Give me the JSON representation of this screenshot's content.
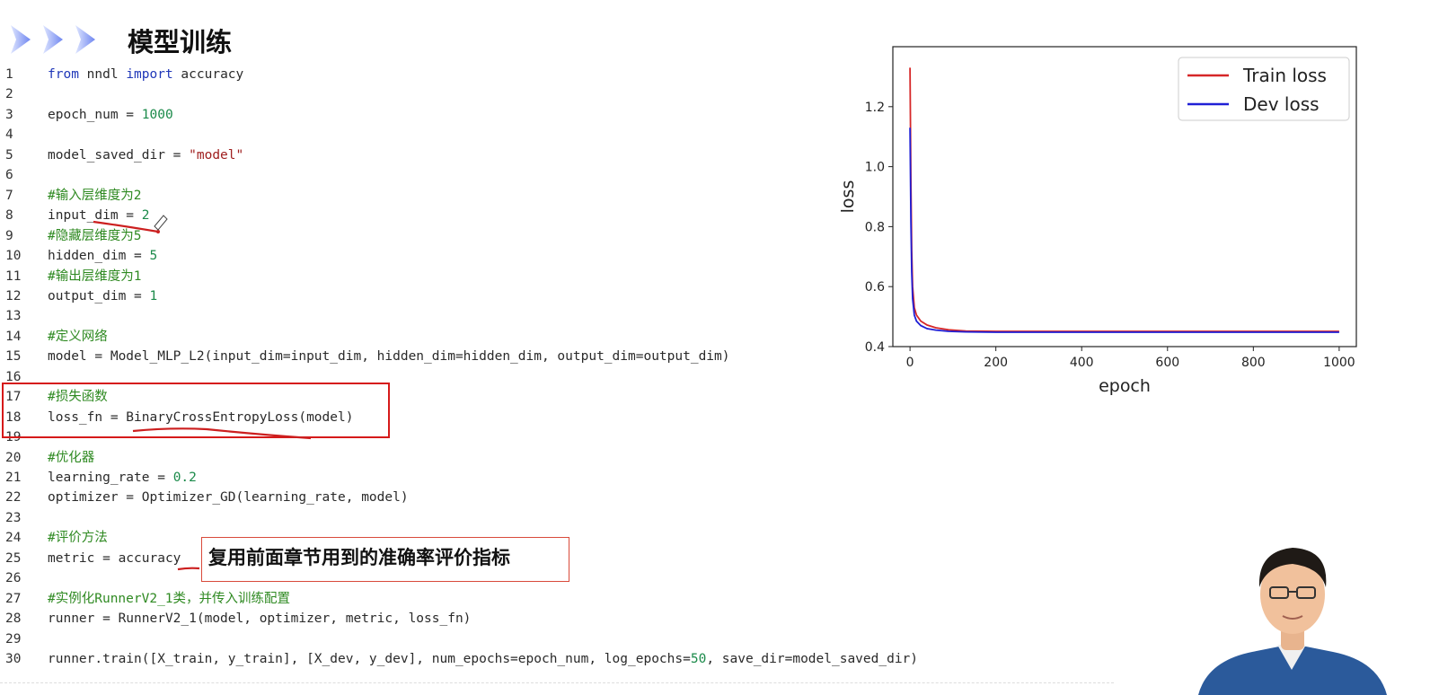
{
  "slide": {
    "title": "模型训练"
  },
  "code": {
    "lines": [
      {
        "n": "1",
        "parts": [
          [
            "kw",
            "from"
          ],
          [
            "",
            " nndl "
          ],
          [
            "kw",
            "import"
          ],
          [
            "",
            " accuracy"
          ]
        ]
      },
      {
        "n": "2",
        "parts": []
      },
      {
        "n": "3",
        "parts": [
          [
            "",
            "epoch_num = "
          ],
          [
            "num",
            "1000"
          ]
        ]
      },
      {
        "n": "4",
        "parts": []
      },
      {
        "n": "5",
        "parts": [
          [
            "",
            "model_saved_dir = "
          ],
          [
            "str",
            "\"model\""
          ]
        ]
      },
      {
        "n": "6",
        "parts": []
      },
      {
        "n": "7",
        "parts": [
          [
            "cmt",
            "#输入层维度为2"
          ]
        ]
      },
      {
        "n": "8",
        "parts": [
          [
            "",
            "input_dim = "
          ],
          [
            "num",
            "2"
          ]
        ]
      },
      {
        "n": "9",
        "parts": [
          [
            "cmt",
            "#隐藏层维度为5"
          ]
        ]
      },
      {
        "n": "10",
        "parts": [
          [
            "",
            "hidden_dim = "
          ],
          [
            "num",
            "5"
          ]
        ]
      },
      {
        "n": "11",
        "parts": [
          [
            "cmt",
            "#输出层维度为1"
          ]
        ]
      },
      {
        "n": "12",
        "parts": [
          [
            "",
            "output_dim = "
          ],
          [
            "num",
            "1"
          ]
        ]
      },
      {
        "n": "13",
        "parts": []
      },
      {
        "n": "14",
        "parts": [
          [
            "cmt",
            "#定义网络"
          ]
        ]
      },
      {
        "n": "15",
        "parts": [
          [
            "",
            "model = Model_MLP_L2(input_dim=input_dim, hidden_dim=hidden_dim, output_dim=output_dim)"
          ]
        ]
      },
      {
        "n": "16",
        "parts": []
      },
      {
        "n": "17",
        "parts": [
          [
            "cmt",
            "#损失函数"
          ]
        ]
      },
      {
        "n": "18",
        "parts": [
          [
            "",
            "loss_fn = BinaryCrossEntropyLoss(model)"
          ]
        ]
      },
      {
        "n": "19",
        "parts": []
      },
      {
        "n": "20",
        "parts": [
          [
            "cmt",
            "#优化器"
          ]
        ]
      },
      {
        "n": "21",
        "parts": [
          [
            "",
            "learning_rate = "
          ],
          [
            "num",
            "0.2"
          ]
        ]
      },
      {
        "n": "22",
        "parts": [
          [
            "",
            "optimizer = Optimizer_GD(learning_rate, model)"
          ]
        ]
      },
      {
        "n": "23",
        "parts": []
      },
      {
        "n": "24",
        "parts": [
          [
            "cmt",
            "#评价方法"
          ]
        ]
      },
      {
        "n": "25",
        "parts": [
          [
            "",
            "metric = accuracy"
          ]
        ]
      },
      {
        "n": "26",
        "parts": []
      },
      {
        "n": "27",
        "parts": [
          [
            "cmt",
            "#实例化RunnerV2_1类，并传入训练配置"
          ]
        ]
      },
      {
        "n": "28",
        "parts": [
          [
            "",
            "runner = RunnerV2_1(model, optimizer, metric, loss_fn)"
          ]
        ]
      },
      {
        "n": "29",
        "parts": []
      },
      {
        "n": "30",
        "parts": [
          [
            "",
            "runner.train([X_train, y_train], [X_dev, y_dev], num_epochs=epoch_num, log_epochs="
          ],
          [
            "num",
            "50"
          ],
          [
            "",
            ", save_dir=model_saved_dir)"
          ]
        ]
      }
    ]
  },
  "callout": {
    "text": "复用前面章节用到的准确率评价指标"
  },
  "chart_data": {
    "type": "line",
    "xlabel": "epoch",
    "ylabel": "loss",
    "xlim": [
      -40,
      1040
    ],
    "ylim": [
      0.4,
      1.4
    ],
    "xticks": [
      0,
      200,
      400,
      600,
      800,
      1000
    ],
    "yticks": [
      0.4,
      0.6,
      0.8,
      1.0,
      1.2
    ],
    "xtick_labels": [
      "0",
      "200",
      "400",
      "600",
      "800",
      "1000"
    ],
    "ytick_labels": [
      "0.4",
      "0.6",
      "0.8",
      "1.0",
      "1.2"
    ],
    "legend_position": "top-right",
    "series": [
      {
        "name": "Train loss",
        "color": "#d62728",
        "points": [
          [
            0,
            1.33
          ],
          [
            2,
            0.95
          ],
          [
            4,
            0.72
          ],
          [
            6,
            0.6
          ],
          [
            10,
            0.53
          ],
          [
            15,
            0.505
          ],
          [
            25,
            0.485
          ],
          [
            40,
            0.472
          ],
          [
            60,
            0.463
          ],
          [
            90,
            0.456
          ],
          [
            130,
            0.452
          ],
          [
            200,
            0.451
          ],
          [
            400,
            0.451
          ],
          [
            600,
            0.451
          ],
          [
            800,
            0.451
          ],
          [
            1000,
            0.451
          ]
        ]
      },
      {
        "name": "Dev loss",
        "color": "#1f1fd6",
        "points": [
          [
            0,
            1.13
          ],
          [
            2,
            0.82
          ],
          [
            4,
            0.65
          ],
          [
            6,
            0.56
          ],
          [
            10,
            0.505
          ],
          [
            15,
            0.485
          ],
          [
            25,
            0.47
          ],
          [
            40,
            0.46
          ],
          [
            60,
            0.455
          ],
          [
            90,
            0.451
          ],
          [
            130,
            0.449
          ],
          [
            200,
            0.448
          ],
          [
            400,
            0.448
          ],
          [
            600,
            0.448
          ],
          [
            800,
            0.448
          ],
          [
            1000,
            0.448
          ]
        ]
      }
    ]
  }
}
